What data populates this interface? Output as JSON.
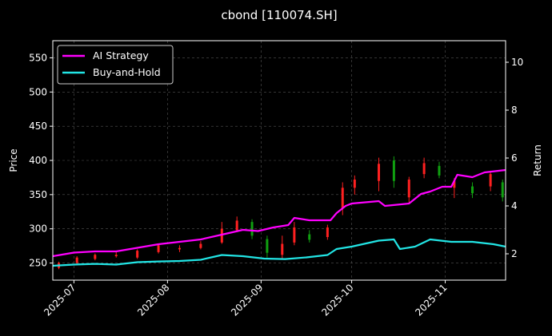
{
  "chart_data": {
    "type": "line",
    "title": "cbond [110074.SH]",
    "xlabel": "",
    "ylabel": "Price",
    "ylabel_right": "Return",
    "x_ticks": [
      "2025-07",
      "2025-08",
      "2025-09",
      "2025-10",
      "2025-11"
    ],
    "x_range": [
      "2025-06-24",
      "2025-11-21"
    ],
    "ylim": [
      225,
      575
    ],
    "y_ticks": [
      250,
      300,
      350,
      400,
      450,
      500,
      550
    ],
    "ylim_right": [
      0.9,
      10.9
    ],
    "y_ticks_right": [
      2,
      4,
      6,
      8,
      10
    ],
    "grid": true,
    "legend": "top-left",
    "colors": {
      "background": "#000000",
      "strategy": "#ff00ff",
      "buyhold": "#22e5e5",
      "candle_up": "#ff2020",
      "candle_down": "#10a010",
      "grid": "#555555"
    },
    "series": [
      {
        "name": "AI Strategy",
        "axis": "right",
        "points": [
          [
            "2025-06-24",
            1.9
          ],
          [
            "2025-07-01",
            2.05
          ],
          [
            "2025-07-08",
            2.1
          ],
          [
            "2025-07-15",
            2.1
          ],
          [
            "2025-07-22",
            2.25
          ],
          [
            "2025-07-29",
            2.4
          ],
          [
            "2025-08-05",
            2.5
          ],
          [
            "2025-08-12",
            2.6
          ],
          [
            "2025-08-19",
            2.8
          ],
          [
            "2025-08-26",
            3.0
          ],
          [
            "2025-08-31",
            2.95
          ],
          [
            "2025-09-05",
            3.1
          ],
          [
            "2025-09-10",
            3.2
          ],
          [
            "2025-09-12",
            3.5
          ],
          [
            "2025-09-17",
            3.4
          ],
          [
            "2025-09-24",
            3.4
          ],
          [
            "2025-09-26",
            3.7
          ],
          [
            "2025-09-29",
            4.0
          ],
          [
            "2025-10-01",
            4.1
          ],
          [
            "2025-10-10",
            4.2
          ],
          [
            "2025-10-12",
            4.0
          ],
          [
            "2025-10-20",
            4.1
          ],
          [
            "2025-10-24",
            4.5
          ],
          [
            "2025-10-27",
            4.6
          ],
          [
            "2025-10-31",
            4.8
          ],
          [
            "2025-11-03",
            4.8
          ],
          [
            "2025-11-05",
            5.3
          ],
          [
            "2025-11-10",
            5.2
          ],
          [
            "2025-11-14",
            5.4
          ],
          [
            "2025-11-21",
            5.5
          ]
        ]
      },
      {
        "name": "Buy-and-Hold",
        "axis": "right",
        "points": [
          [
            "2025-06-24",
            1.5
          ],
          [
            "2025-07-01",
            1.55
          ],
          [
            "2025-07-08",
            1.58
          ],
          [
            "2025-07-15",
            1.55
          ],
          [
            "2025-07-22",
            1.65
          ],
          [
            "2025-07-29",
            1.68
          ],
          [
            "2025-08-05",
            1.7
          ],
          [
            "2025-08-12",
            1.75
          ],
          [
            "2025-08-19",
            1.95
          ],
          [
            "2025-08-26",
            1.9
          ],
          [
            "2025-09-02",
            1.8
          ],
          [
            "2025-09-09",
            1.78
          ],
          [
            "2025-09-16",
            1.85
          ],
          [
            "2025-09-23",
            1.95
          ],
          [
            "2025-09-26",
            2.2
          ],
          [
            "2025-10-01",
            2.3
          ],
          [
            "2025-10-10",
            2.55
          ],
          [
            "2025-10-15",
            2.6
          ],
          [
            "2025-10-17",
            2.2
          ],
          [
            "2025-10-22",
            2.3
          ],
          [
            "2025-10-27",
            2.6
          ],
          [
            "2025-11-03",
            2.5
          ],
          [
            "2025-11-10",
            2.5
          ],
          [
            "2025-11-17",
            2.4
          ],
          [
            "2025-11-21",
            2.3
          ]
        ]
      }
    ],
    "candles": [
      [
        "2025-06-26",
        243,
        250,
        241,
        252,
        "up"
      ],
      [
        "2025-07-02",
        250,
        258,
        248,
        260,
        "up"
      ],
      [
        "2025-07-08",
        256,
        262,
        254,
        264,
        "up"
      ],
      [
        "2025-07-15",
        260,
        262,
        258,
        266,
        "up"
      ],
      [
        "2025-07-22",
        258,
        268,
        256,
        270,
        "up"
      ],
      [
        "2025-07-29",
        266,
        276,
        264,
        278,
        "up"
      ],
      [
        "2025-08-05",
        270,
        272,
        266,
        276,
        "up"
      ],
      [
        "2025-08-12",
        272,
        278,
        270,
        282,
        "up"
      ],
      [
        "2025-08-19",
        280,
        300,
        278,
        310,
        "up"
      ],
      [
        "2025-08-24",
        298,
        312,
        295,
        318,
        "up"
      ],
      [
        "2025-08-29",
        310,
        290,
        285,
        314,
        "down"
      ],
      [
        "2025-09-03",
        285,
        265,
        258,
        290,
        "down"
      ],
      [
        "2025-09-08",
        262,
        278,
        256,
        290,
        "up"
      ],
      [
        "2025-09-12",
        280,
        302,
        276,
        310,
        "up"
      ],
      [
        "2025-09-17",
        292,
        284,
        280,
        298,
        "down"
      ],
      [
        "2025-09-23",
        288,
        302,
        284,
        306,
        "up"
      ],
      [
        "2025-09-28",
        330,
        360,
        320,
        368,
        "up"
      ],
      [
        "2025-10-02",
        360,
        372,
        350,
        378,
        "up"
      ],
      [
        "2025-10-10",
        370,
        395,
        355,
        404,
        "up"
      ],
      [
        "2025-10-15",
        400,
        370,
        360,
        406,
        "down"
      ],
      [
        "2025-10-20",
        346,
        372,
        338,
        376,
        "up"
      ],
      [
        "2025-10-25",
        380,
        396,
        374,
        404,
        "up"
      ],
      [
        "2025-10-30",
        392,
        378,
        374,
        398,
        "down"
      ],
      [
        "2025-11-04",
        360,
        370,
        345,
        374,
        "up"
      ],
      [
        "2025-11-10",
        362,
        352,
        345,
        368,
        "down"
      ],
      [
        "2025-11-16",
        362,
        380,
        355,
        385,
        "up"
      ],
      [
        "2025-11-20",
        368,
        346,
        340,
        372,
        "down"
      ]
    ]
  }
}
